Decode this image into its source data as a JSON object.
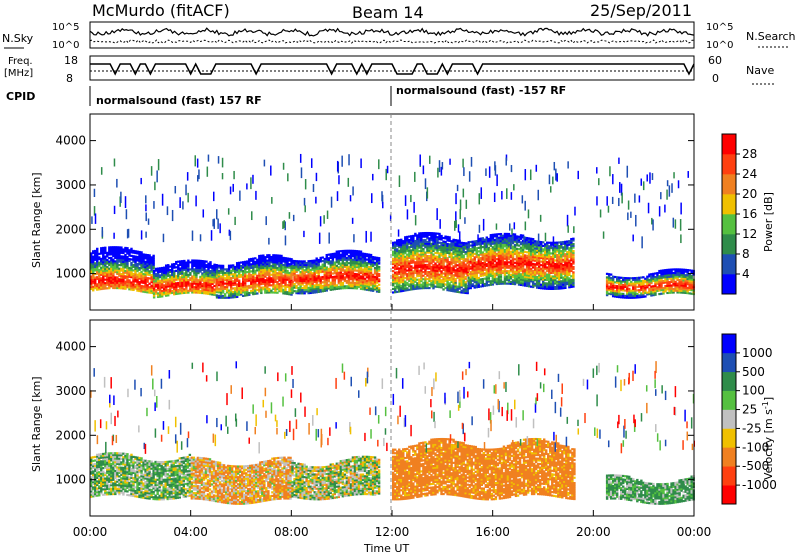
{
  "header": {
    "station": "McMurdo (fitACF)",
    "beam": "Beam 14",
    "date": "25/Sep/2011"
  },
  "top_panel": {
    "nsky_label": "N.Sky",
    "nsearch_label": "N.Search",
    "freq_label_1": "Freq.",
    "freq_label_2": "[MHz]",
    "nave_label": "Nave",
    "cpid_label": "CPID",
    "left_tick_high": "10^5",
    "left_tick_low": "10^0",
    "right_tick_high": "10^5",
    "right_tick_low": "10^0",
    "freq_tick_high": "18",
    "freq_tick_low": "8",
    "nave_tick_high": "60",
    "nave_tick_low": "0",
    "cpid_segments": [
      "normalsound (fast) 157 RF",
      "normalsound (fast) -157 RF"
    ]
  },
  "axes": {
    "ylabel": "Slant Range [km]",
    "xlabel": "Time UT",
    "x_ticks": [
      "00:00",
      "04:00",
      "08:00",
      "12:00",
      "16:00",
      "20:00",
      "00:00"
    ],
    "y_ticks": [
      "1000",
      "2000",
      "3000",
      "4000"
    ]
  },
  "colorbars": {
    "power": {
      "label": "Power [dB]",
      "ticks": [
        "4",
        "8",
        "12",
        "16",
        "20",
        "24",
        "28"
      ],
      "colors": [
        "#0000ff",
        "#1e4fb3",
        "#2f8c4a",
        "#55c040",
        "#f0c000",
        "#f08020",
        "#ff4010",
        "#ff0000"
      ]
    },
    "velocity": {
      "label": "Velocity [m s",
      "label_sup": "-1",
      "label_end": "]",
      "ticks": [
        "1000",
        "500",
        "100",
        "25",
        "-25",
        "-100",
        "-500",
        "-1000"
      ],
      "colors": [
        "#0000ff",
        "#1e4fb3",
        "#2f8c4a",
        "#55c040",
        "#c0c0c0",
        "#f0c000",
        "#f08020",
        "#ff4010",
        "#ff0000"
      ]
    }
  },
  "chart_data": [
    {
      "type": "heatmap",
      "title": "Power",
      "xlabel": "Time UT",
      "ylabel": "Slant Range [km]",
      "xlim": [
        "00:00",
        "24:00"
      ],
      "ylim": [
        180,
        4600
      ],
      "color_scale": [
        0,
        30
      ],
      "bands": [
        {
          "t0": 0.0,
          "t1": 2.5,
          "r_low": 600,
          "r_high": 1500,
          "r_peak": 800
        },
        {
          "t0": 2.5,
          "t1": 5.0,
          "r_low": 500,
          "r_high": 1200,
          "r_peak": 700
        },
        {
          "t0": 5.0,
          "t1": 8.0,
          "r_low": 500,
          "r_high": 1300,
          "r_peak": 800
        },
        {
          "t0": 8.0,
          "t1": 11.5,
          "r_low": 600,
          "r_high": 1400,
          "r_peak": 900
        },
        {
          "t0": 12.0,
          "t1": 15.0,
          "r_low": 600,
          "r_high": 1800,
          "r_peak": 1100
        },
        {
          "t0": 15.0,
          "t1": 19.2,
          "r_low": 700,
          "r_high": 1800,
          "r_peak": 1200
        },
        {
          "t0": 20.5,
          "t1": 24.0,
          "r_low": 500,
          "r_high": 1000,
          "r_peak": 700
        }
      ]
    },
    {
      "type": "heatmap",
      "title": "Velocity",
      "xlabel": "Time UT",
      "ylabel": "Slant Range [km]",
      "xlim": [
        "00:00",
        "24:00"
      ],
      "ylim": [
        180,
        4600
      ],
      "color_scale": [
        -1000,
        1000
      ],
      "bands": [
        {
          "t0": 0.0,
          "t1": 4.0,
          "r_low": 600,
          "r_high": 1500,
          "velocity": 50
        },
        {
          "t0": 4.0,
          "t1": 8.0,
          "r_low": 500,
          "r_high": 1400,
          "velocity": -60
        },
        {
          "t0": 8.0,
          "t1": 11.5,
          "r_low": 600,
          "r_high": 1400,
          "velocity": 10
        },
        {
          "t0": 12.0,
          "t1": 19.2,
          "r_low": 600,
          "r_high": 1800,
          "velocity": -300
        },
        {
          "t0": 20.5,
          "t1": 24.0,
          "r_low": 500,
          "r_high": 1000,
          "velocity": 80
        }
      ]
    }
  ]
}
